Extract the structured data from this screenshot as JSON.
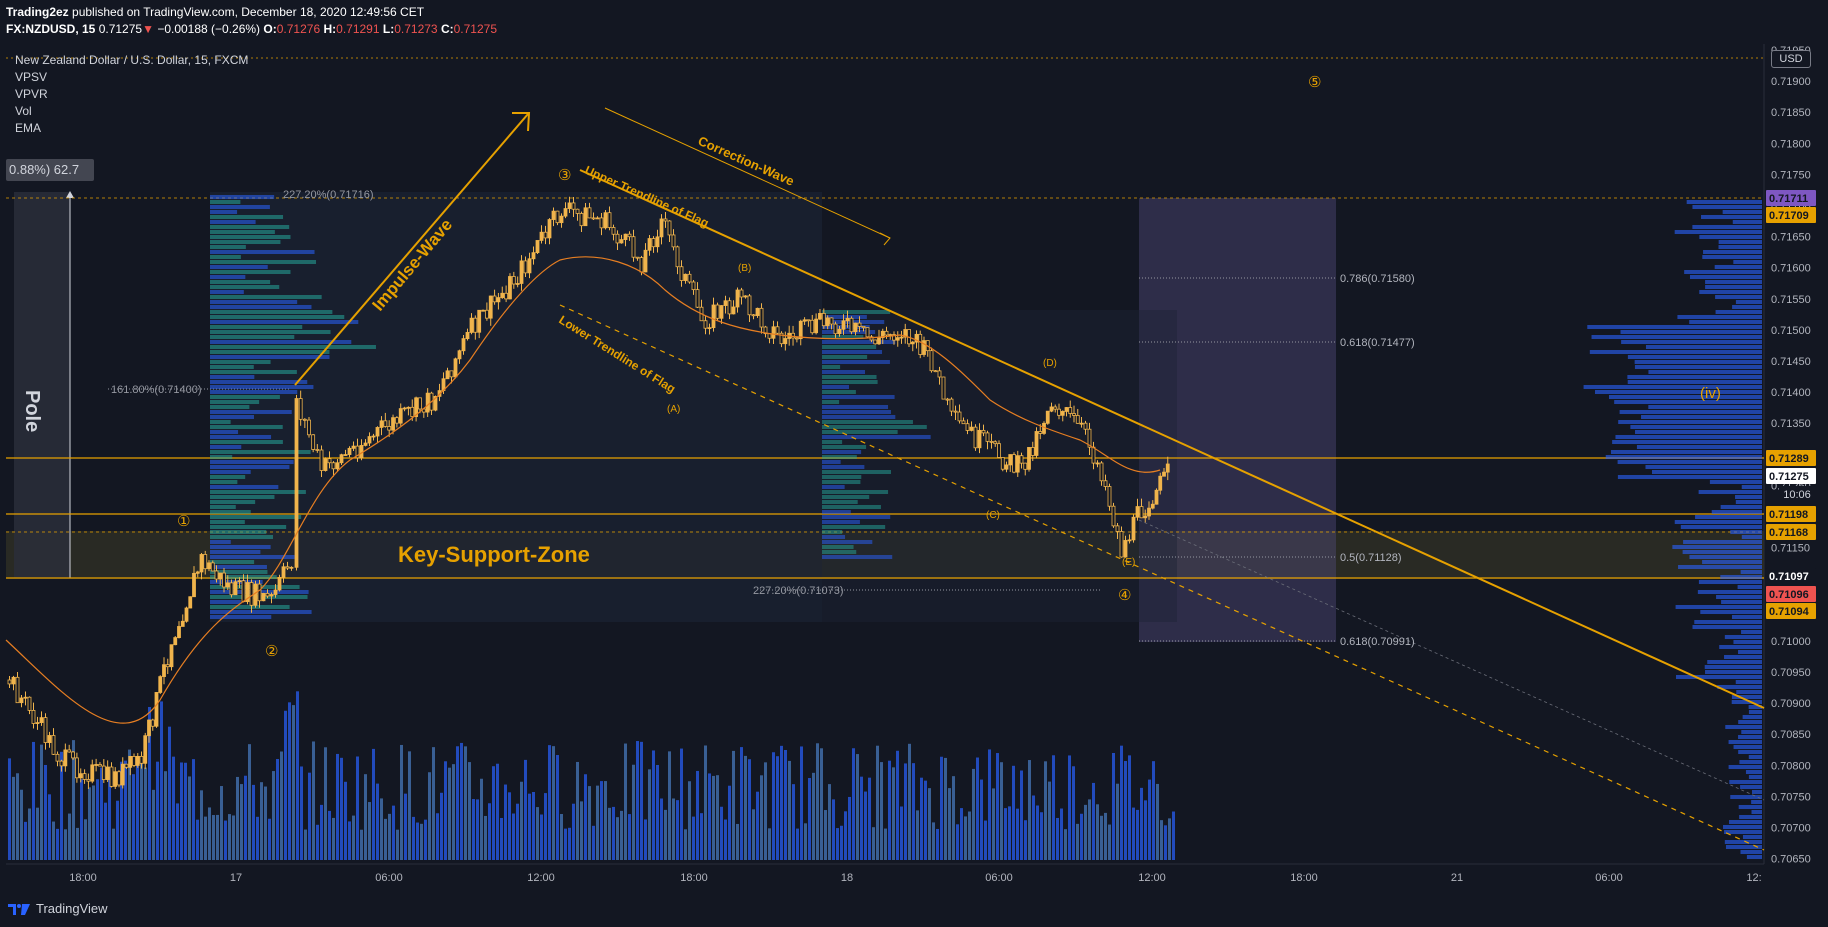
{
  "header": {
    "author": "Trading2ez",
    "published_text": "published on TradingView.com, December 18, 2020 12:49:56 CET",
    "symbol": "FX:NZDUSD, 15",
    "last": "0.71275",
    "change_arrow": "▼",
    "change": "−0.00188 (−0.26%)",
    "o_label": "O:",
    "o_value": "0.71276",
    "h_label": "H:",
    "h_value": "0.71291",
    "l_label": "L:",
    "l_value": "0.71273",
    "c_label": "C:",
    "c_value": "0.71275"
  },
  "legend": {
    "title": "New Zealand Dollar / U.S. Dollar, 15, FXCM",
    "indicators": [
      "VPSV",
      "VPVR",
      "Vol",
      "EMA"
    ]
  },
  "currency_button": "USD",
  "pole_tag": "0.88%) 62.7",
  "countdown": "10:06",
  "annotations": {
    "pole": "Pole",
    "impulse": "Impulse-Wave",
    "correction": "Correction-Wave",
    "upper_trend": "Upper Trendline of Flag",
    "lower_trend": "Lower Trendline of Flag",
    "support_zone": "Key-Support-Zone",
    "fib_top": "227.20%(0.71716)",
    "fib_161": "161.80%(0.71400)",
    "fib_227b": "227.20%(0.71073)",
    "fib_786": "0.786(0.71580)",
    "fib_618a": "0.618(0.71477)",
    "fib_05": "0.5(0.71128)",
    "fib_618b": "0.618(0.70991)",
    "wave_1": "①",
    "wave_2": "②",
    "wave_3": "③",
    "wave_4": "④",
    "wave_5": "⑤",
    "wave_a": "(A)",
    "wave_b": "(B)",
    "wave_c": "(C)",
    "wave_d": "(D)",
    "wave_e": "(E)",
    "wave_iv": "(iv)"
  },
  "price_axis": {
    "ticks": [
      "0.71950",
      "0.71900",
      "0.71850",
      "0.71800",
      "0.71750",
      "0.71700",
      "0.71650",
      "0.71600",
      "0.71550",
      "0.71500",
      "0.71450",
      "0.71400",
      "0.71350",
      "0.71300",
      "0.71250",
      "0.71200",
      "0.71150",
      "0.71100",
      "0.71050",
      "0.71000",
      "0.70950",
      "0.70900",
      "0.70850",
      "0.70800",
      "0.70750",
      "0.70700",
      "0.70650"
    ],
    "badges": [
      {
        "text": "0.71711",
        "color": "#7e57c2"
      },
      {
        "text": "0.71709",
        "color": "#e6a100"
      },
      {
        "text": "0.71289",
        "color": "#e6a100"
      },
      {
        "text": "0.71275",
        "color": "#ffffff"
      },
      {
        "text": "0.71198",
        "color": "#e6a100"
      },
      {
        "text": "0.71168",
        "color": "#e6a100"
      },
      {
        "text": "0.71097",
        "color": "#131722"
      },
      {
        "text": "0.71096",
        "color": "#ef5350"
      },
      {
        "text": "0.71094",
        "color": "#e6a100"
      }
    ]
  },
  "time_axis": {
    "ticks": [
      "18:00",
      "17",
      "06:00",
      "12:00",
      "18:00",
      "18",
      "06:00",
      "12:00",
      "18:00",
      "21",
      "06:00",
      "12:"
    ]
  },
  "footer": {
    "brand": "TradingView"
  },
  "colors": {
    "bg": "#131722",
    "orange": "#e6a100",
    "candle": "#f0b44c",
    "volume": "#2962ff",
    "volume_light": "#4a7fc4"
  }
}
